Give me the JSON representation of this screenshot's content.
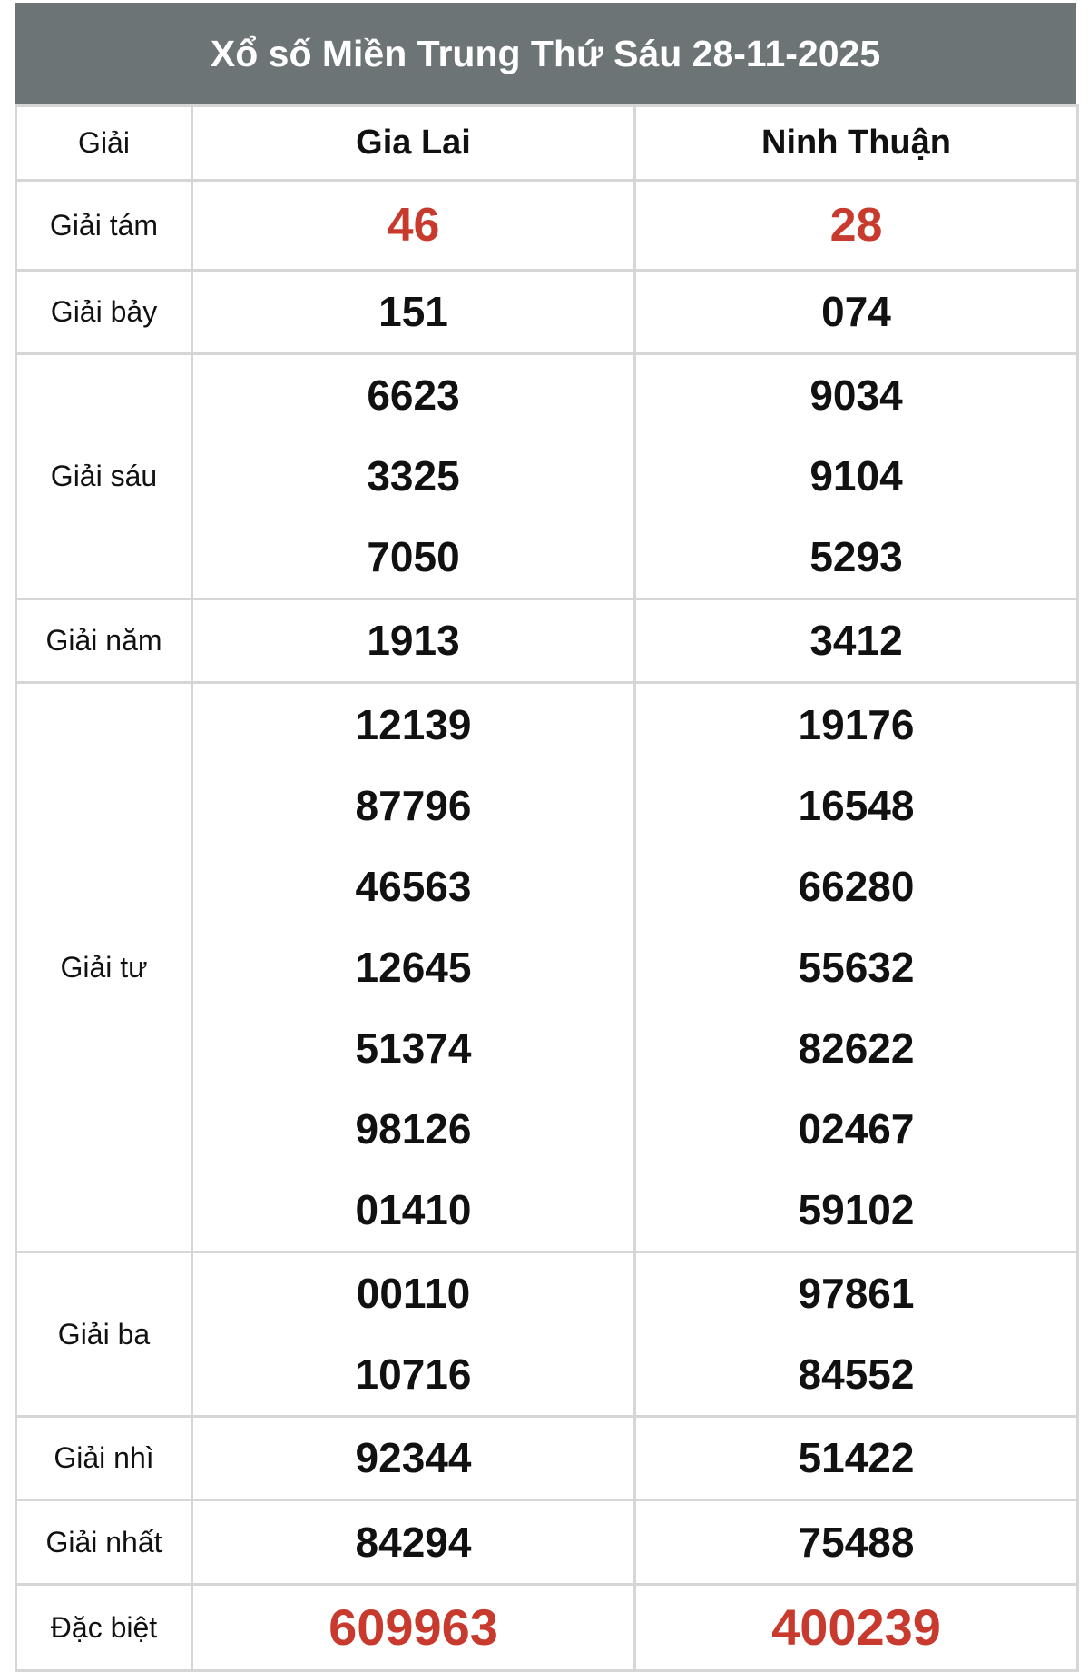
{
  "title": "Xổ số Miền Trung Thứ Sáu 28-11-2025",
  "header": {
    "label": "Giải",
    "provinces": [
      "Gia Lai",
      "Ninh Thuận"
    ]
  },
  "colors": {
    "header_bg": "#6c7476",
    "highlight": "#c83a2e",
    "border": "#d6d6d6"
  },
  "prizes": [
    {
      "label": "Giải tám",
      "style": "red",
      "results": [
        [
          "46"
        ],
        [
          "28"
        ]
      ]
    },
    {
      "label": "Giải bảy",
      "results": [
        [
          "151"
        ],
        [
          "074"
        ]
      ]
    },
    {
      "label": "Giải sáu",
      "results": [
        [
          "6623",
          "3325",
          "7050"
        ],
        [
          "9034",
          "9104",
          "5293"
        ]
      ]
    },
    {
      "label": "Giải năm",
      "results": [
        [
          "1913"
        ],
        [
          "3412"
        ]
      ]
    },
    {
      "label": "Giải tư",
      "results": [
        [
          "12139",
          "87796",
          "46563",
          "12645",
          "51374",
          "98126",
          "01410"
        ],
        [
          "19176",
          "16548",
          "66280",
          "55632",
          "82622",
          "02467",
          "59102"
        ]
      ]
    },
    {
      "label": "Giải ba",
      "results": [
        [
          "00110",
          "10716"
        ],
        [
          "97861",
          "84552"
        ]
      ]
    },
    {
      "label": "Giải nhì",
      "results": [
        [
          "92344"
        ],
        [
          "51422"
        ]
      ]
    },
    {
      "label": "Giải nhất",
      "results": [
        [
          "84294"
        ],
        [
          "75488"
        ]
      ]
    },
    {
      "label": "Đặc biệt",
      "style": "special",
      "results": [
        [
          "609963"
        ],
        [
          "400239"
        ]
      ]
    }
  ]
}
